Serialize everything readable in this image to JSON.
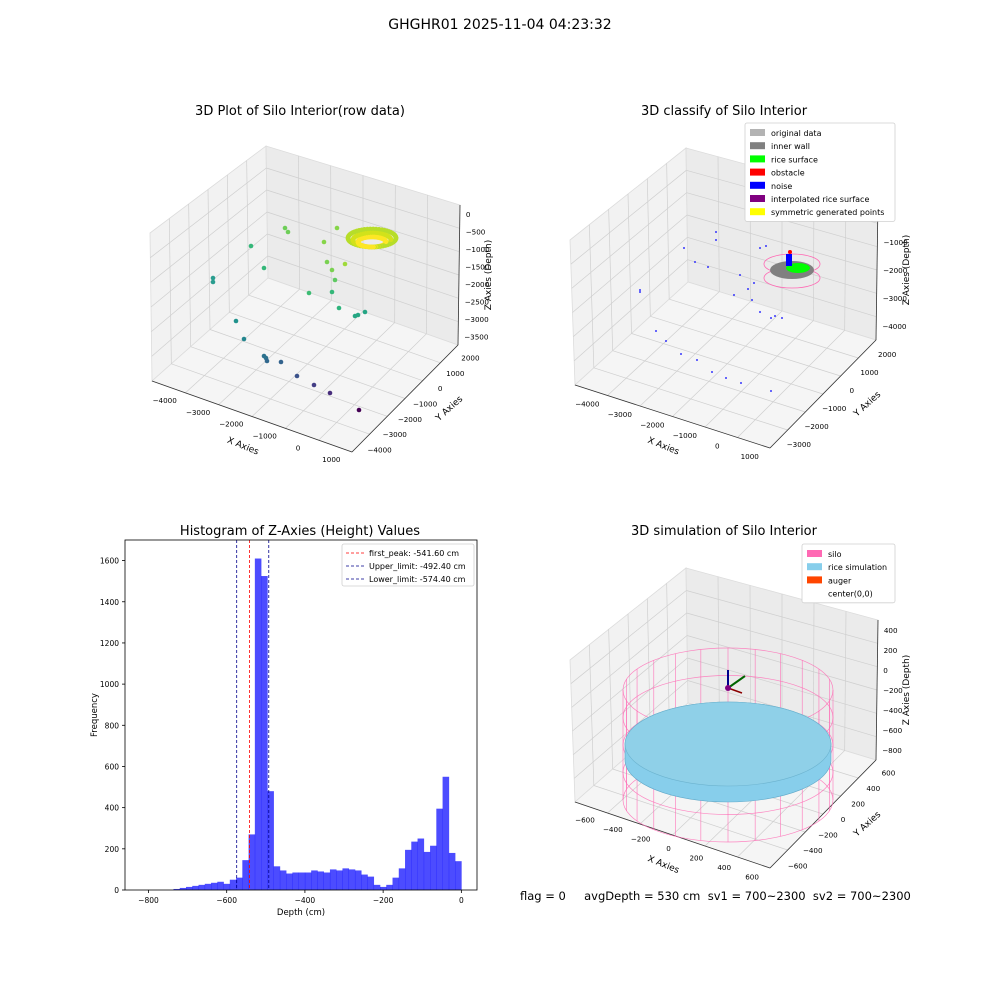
{
  "suptitle": "GHGHR01 2025-11-04 04:23:32",
  "status_line": "flag = 0     avgDepth = 530 cm  sv1 = 700~2300  sv2 = 700~2300",
  "chart_data": [
    {
      "type": "scatter",
      "title": "3D Plot of Silo Interior(row data)",
      "xlabel": "X Axies",
      "ylabel": "Y Axies",
      "zlabel": "Z Axies (Depth)",
      "x_ticks": [
        "−4000",
        "−3000",
        "−2000",
        "−1000",
        "0",
        "1000"
      ],
      "y_ticks": [
        "−4000",
        "−3000",
        "−2000",
        "−1000",
        "0",
        "1000",
        "2000"
      ],
      "z_ticks": [
        "0",
        "−500",
        "−1000",
        "−1500",
        "−2000",
        "−2500",
        "−3000",
        "−3500"
      ],
      "colormap": "viridis",
      "grid": true
    },
    {
      "type": "scatter",
      "title": "3D classify of Silo Interior",
      "xlabel": "X Axies",
      "ylabel": "Y Axies",
      "zlabel": "Z Axies (Depth)",
      "x_ticks": [
        "−4000",
        "−3000",
        "−2000",
        "−1000",
        "0",
        "1000"
      ],
      "y_ticks": [
        "−3000",
        "−2000",
        "−1000",
        "0",
        "1000",
        "2000"
      ],
      "z_ticks": [
        "0",
        "−1000",
        "−2000",
        "−3000",
        "−4000"
      ],
      "legend_position": "top-right",
      "legend": [
        {
          "name": "original data",
          "color": "#b3b3b3"
        },
        {
          "name": "inner wall",
          "color": "#808080"
        },
        {
          "name": "rice surface",
          "color": "#00ff00"
        },
        {
          "name": "obstacle",
          "color": "#ff0000"
        },
        {
          "name": "noise",
          "color": "#0000ff"
        },
        {
          "name": "interpolated rice surface",
          "color": "#800080"
        },
        {
          "name": "symmetric generated points",
          "color": "#ffff00"
        }
      ],
      "grid": true
    },
    {
      "type": "bar",
      "title": "Histogram of Z-Axies (Height) Values",
      "xlabel": "Depth (cm)",
      "ylabel": "Frequency",
      "xlim": [
        -860,
        40
      ],
      "ylim": [
        0,
        1700
      ],
      "x_ticks": [
        -800,
        -600,
        -400,
        -200,
        0
      ],
      "y_ticks": [
        0,
        200,
        400,
        600,
        800,
        1000,
        1200,
        1400,
        1600
      ],
      "bar_color": "#0000ff",
      "bin_width": 16,
      "bin_start": -736,
      "values": [
        5,
        10,
        15,
        20,
        25,
        30,
        35,
        40,
        30,
        50,
        60,
        145,
        270,
        1610,
        1525,
        480,
        115,
        95,
        80,
        85,
        85,
        85,
        95,
        90,
        85,
        100,
        95,
        105,
        100,
        95,
        75,
        65,
        25,
        15,
        25,
        60,
        105,
        195,
        235,
        250,
        185,
        215,
        395,
        550,
        180,
        140
      ],
      "vlines": [
        {
          "label": "first_peak: -541.60 cm",
          "x": -541.6,
          "color": "#ff0000"
        },
        {
          "label": "Upper_limit: -492.40 cm",
          "x": -492.4,
          "color": "#00008b"
        },
        {
          "label": "Lower_limit: -574.40 cm",
          "x": -574.4,
          "color": "#00008b"
        }
      ],
      "legend_position": "top-right"
    },
    {
      "type": "scatter",
      "title": "3D simulation of Silo Interior",
      "xlabel": "X Axies",
      "ylabel": "Y Axies",
      "zlabel": "Z Axies (Depth)",
      "x_ticks": [
        "−600",
        "−400",
        "−200",
        "0",
        "200",
        "400",
        "600"
      ],
      "y_ticks": [
        "−600",
        "−400",
        "−200",
        "0",
        "200",
        "400",
        "600"
      ],
      "z_ticks": [
        "400",
        "200",
        "0",
        "−200",
        "−400",
        "−600",
        "−800"
      ],
      "legend_position": "top-right",
      "legend": [
        {
          "name": "silo",
          "color": "#ff69b4"
        },
        {
          "name": "rice simulation",
          "color": "#87ceeb"
        },
        {
          "name": "auger",
          "color": "#ff4500"
        },
        {
          "name": "center(0,0)",
          "color": ""
        }
      ],
      "grid": true
    }
  ]
}
